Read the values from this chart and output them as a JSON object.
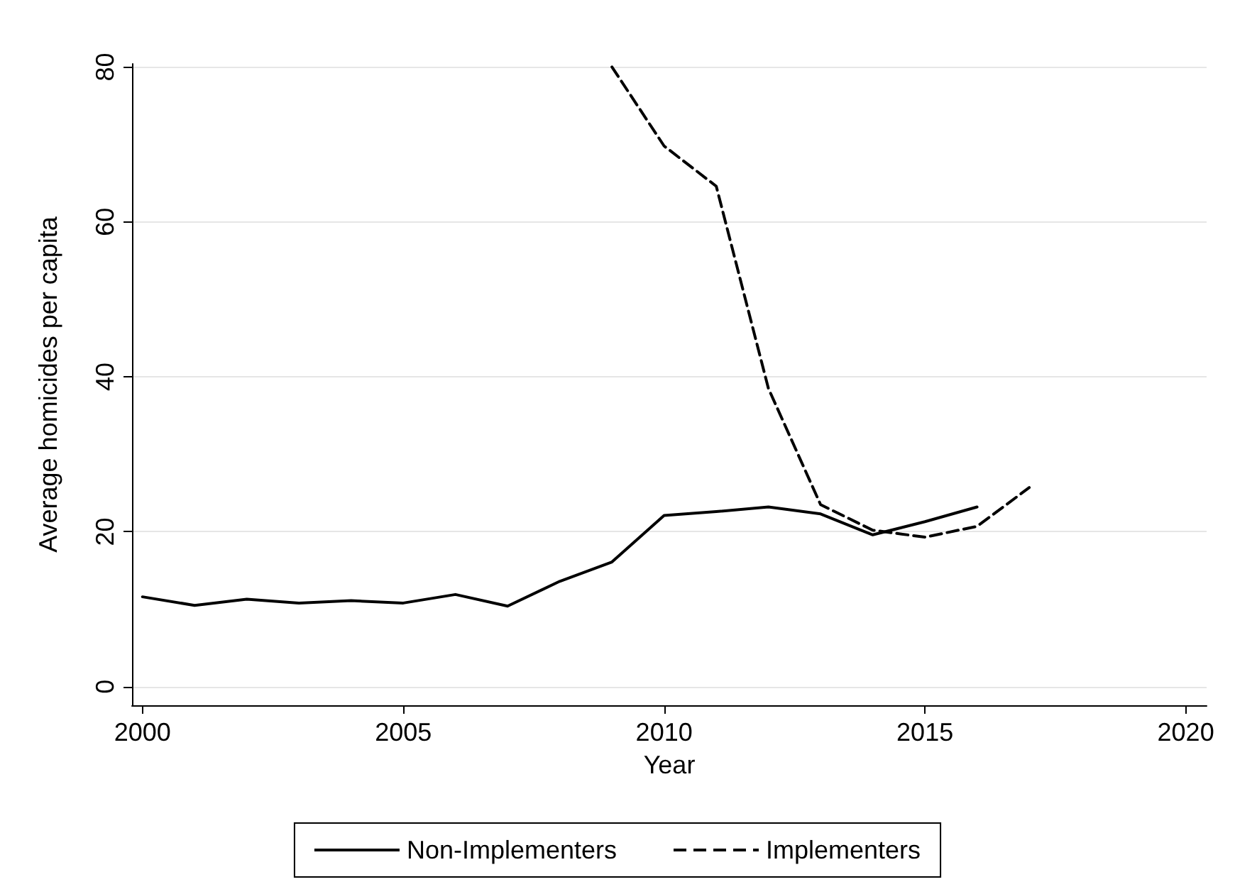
{
  "chart_data": {
    "type": "line",
    "xlabel": "Year",
    "ylabel": "Average homicides per capita",
    "xlim": [
      1999.8,
      2020.4
    ],
    "xticks": [
      2000,
      2005,
      2010,
      2015,
      2020
    ],
    "ylim": [
      -2.4,
      80.4
    ],
    "yticks": [
      0,
      20,
      40,
      60,
      80
    ],
    "grid": "y",
    "legend": "bottom",
    "marker": "none",
    "series": [
      {
        "name": "Non-Implementers",
        "color": "#000000",
        "line_style": "solid",
        "x": [
          2000,
          2001,
          2002,
          2003,
          2004,
          2005,
          2006,
          2007,
          2008,
          2009,
          2010,
          2011,
          2012,
          2013,
          2014,
          2015,
          2016
        ],
        "values": [
          11.6,
          10.5,
          11.3,
          10.8,
          11.1,
          10.8,
          11.9,
          10.4,
          13.6,
          16.1,
          22.1,
          22.6,
          23.2,
          22.3,
          19.6,
          21.3,
          23.2
        ]
      },
      {
        "name": "Implementers",
        "color": "#000000",
        "line_style": "dashed",
        "x": [
          2009,
          2010,
          2011,
          2012,
          2013,
          2014,
          2015,
          2016,
          2017
        ],
        "values": [
          80,
          69.8,
          64.6,
          38.5,
          23.5,
          20.2,
          19.3,
          20.7,
          25.7
        ]
      }
    ]
  }
}
